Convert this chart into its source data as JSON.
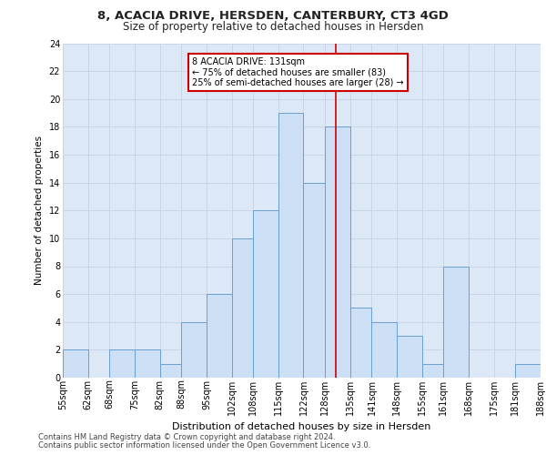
{
  "title_line1": "8, ACACIA DRIVE, HERSDEN, CANTERBURY, CT3 4GD",
  "title_line2": "Size of property relative to detached houses in Hersden",
  "xlabel": "Distribution of detached houses by size in Hersden",
  "ylabel": "Number of detached properties",
  "footer_line1": "Contains HM Land Registry data © Crown copyright and database right 2024.",
  "footer_line2": "Contains public sector information licensed under the Open Government Licence v3.0.",
  "bins": [
    55,
    62,
    68,
    75,
    82,
    88,
    95,
    102,
    108,
    115,
    122,
    128,
    135,
    141,
    148,
    155,
    161,
    168,
    175,
    181,
    188
  ],
  "bin_labels": [
    "55sqm",
    "62sqm",
    "68sqm",
    "75sqm",
    "82sqm",
    "88sqm",
    "95sqm",
    "102sqm",
    "108sqm",
    "115sqm",
    "122sqm",
    "128sqm",
    "135sqm",
    "141sqm",
    "148sqm",
    "155sqm",
    "161sqm",
    "168sqm",
    "175sqm",
    "181sqm",
    "188sqm"
  ],
  "values": [
    2,
    0,
    2,
    2,
    1,
    4,
    6,
    10,
    12,
    19,
    14,
    18,
    5,
    4,
    3,
    1,
    8,
    0,
    0,
    1
  ],
  "bar_color": "#ccdff5",
  "bar_edge_color": "#6a9fd0",
  "grid_color": "#c8d4e8",
  "background_color": "#dce8f5",
  "vline_x": 131,
  "vline_color": "#cc0000",
  "annotation_text": "8 ACACIA DRIVE: 131sqm\n← 75% of detached houses are smaller (83)\n25% of semi-detached houses are larger (28) →",
  "annotation_box_color": "#ffffff",
  "annotation_box_edge": "#cc0000",
  "ylim": [
    0,
    24
  ],
  "yticks": [
    0,
    2,
    4,
    6,
    8,
    10,
    12,
    14,
    16,
    18,
    20,
    22,
    24
  ],
  "title1_fontsize": 9.5,
  "title2_fontsize": 8.5,
  "ylabel_fontsize": 7.5,
  "xlabel_fontsize": 8,
  "tick_fontsize": 7,
  "footer_fontsize": 6,
  "annot_fontsize": 7
}
